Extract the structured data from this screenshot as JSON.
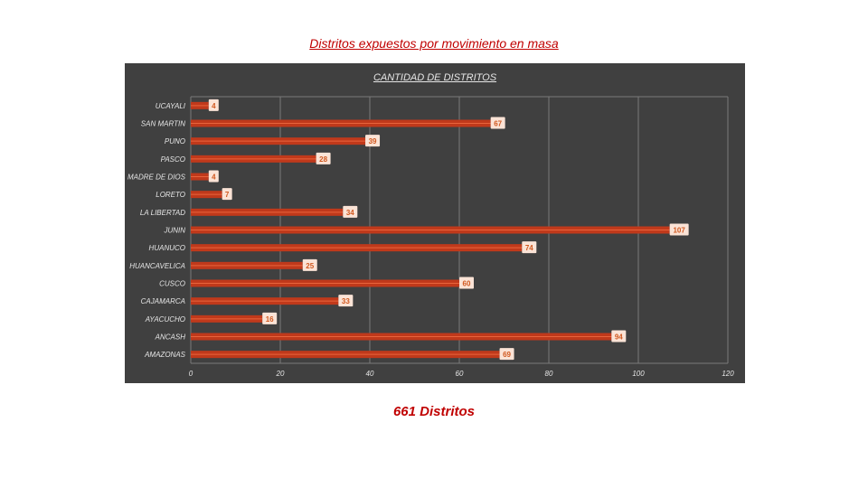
{
  "page": {
    "title": "Distritos expuestos por movimiento en masa",
    "total_label": "661 Distritos"
  },
  "colors": {
    "panel_bg": "#404040",
    "bar": "#c0391b",
    "bar_stripe": "#e8643c",
    "label_box": "#fbe3d6",
    "label_text": "#d0581f",
    "axis_text": "#e6e6e6",
    "grid": "#7a7a7a",
    "title_red": "#c00000"
  },
  "chart_data": {
    "type": "bar",
    "orientation": "horizontal",
    "title": "CANTIDAD DE DISTRITOS",
    "xlabel": "",
    "ylabel": "",
    "xlim": [
      0,
      120
    ],
    "xticks": [
      0,
      20,
      40,
      60,
      80,
      100,
      120
    ],
    "grid": true,
    "categories": [
      "UCAYALI",
      "SAN MARTIN",
      "PUNO",
      "PASCO",
      "MADRE DE DIOS",
      "LORETO",
      "LA LIBERTAD",
      "JUNIN",
      "HUANUCO",
      "HUANCAVELICA",
      "CUSCO",
      "CAJAMARCA",
      "AYACUCHO",
      "ANCASH",
      "AMAZONAS"
    ],
    "values": [
      4,
      67,
      39,
      28,
      4,
      7,
      34,
      107,
      74,
      25,
      60,
      33,
      16,
      94,
      69
    ],
    "value_labels": [
      "4",
      "67",
      "39",
      "28",
      "4",
      "7",
      "34",
      "107",
      "74",
      "25",
      "60",
      "33",
      "16",
      "94",
      "69"
    ]
  }
}
